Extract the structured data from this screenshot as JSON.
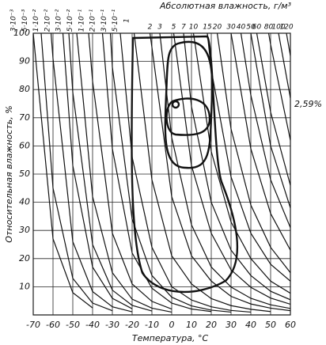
{
  "chart_data": {
    "type": "line",
    "title": "Абсолютная влажность, г/м³",
    "xlabel": "Температура, °C",
    "ylabel": "Относительная влажность, %",
    "annotation": "2,59%",
    "color": "#111",
    "grid": true,
    "xlim": [
      -70,
      60
    ],
    "xticks": [
      -70,
      -60,
      -50,
      -40,
      -30,
      -20,
      -10,
      0,
      10,
      20,
      30,
      40,
      50,
      60
    ],
    "ylim": [
      0,
      100
    ],
    "yticks": [
      10,
      20,
      30,
      40,
      50,
      60,
      70,
      80,
      90,
      100
    ],
    "series": [
      {
        "name": "3·10⁻³",
        "x": [
          -70,
          -60,
          -50,
          -40
        ],
        "values": [
          100,
          27,
          7.9,
          2.5
        ]
      },
      {
        "name": "5·10⁻³",
        "x": [
          -66,
          -60,
          -50,
          -40,
          -30
        ],
        "values": [
          100,
          45,
          13,
          4.2,
          1.5
        ]
      },
      {
        "name": "1·10⁻²",
        "x": [
          -61,
          -60,
          -50,
          -40,
          -30,
          -20
        ],
        "values": [
          100,
          91,
          26,
          8.3,
          2.9,
          1.1
        ]
      },
      {
        "name": "2·10⁻²",
        "x": [
          -55,
          -50,
          -40,
          -30,
          -20
        ],
        "values": [
          100,
          53,
          17,
          5.9,
          2.2
        ]
      },
      {
        "name": "3·10⁻²",
        "x": [
          -52,
          -50,
          -40,
          -30,
          -20,
          -10
        ],
        "values": [
          100,
          79,
          25,
          8.8,
          3.4,
          1.4
        ]
      },
      {
        "name": "5·10⁻²",
        "x": [
          -48,
          -40,
          -30,
          -20,
          -10,
          0
        ],
        "values": [
          100,
          42,
          15,
          5.6,
          2.4,
          1
        ]
      },
      {
        "name": "1·10⁻¹",
        "x": [
          -42,
          -40,
          -30,
          -20,
          -10,
          0
        ],
        "values": [
          100,
          83,
          29,
          11,
          4.8,
          2.1
        ]
      },
      {
        "name": "2·10⁻¹",
        "x": [
          -35,
          -30,
          -20,
          -10,
          0,
          10,
          20
        ],
        "values": [
          100,
          59,
          22,
          9.5,
          4.2,
          2.1,
          1.2
        ]
      },
      {
        "name": "3·10⁻¹",
        "x": [
          -31,
          -30,
          -20,
          -10,
          0,
          10,
          20,
          30
        ],
        "values": [
          100,
          88,
          34,
          14,
          6.3,
          3.2,
          1.7,
          1
        ]
      },
      {
        "name": "5·10⁻¹",
        "x": [
          -26,
          -20,
          -10,
          0,
          10,
          20,
          30,
          40
        ],
        "values": [
          100,
          56,
          24,
          10,
          5.3,
          2.9,
          1.6,
          1
        ]
      },
      {
        "name": "1",
        "x": [
          -19,
          -10,
          0,
          10,
          20,
          30,
          40,
          50
        ],
        "values": [
          100,
          48,
          21,
          11,
          5.8,
          3.3,
          2,
          1.2
        ]
      },
      {
        "name": "2",
        "x": [
          -11,
          -10,
          0,
          10,
          20,
          30,
          40,
          50,
          60
        ],
        "values": [
          100,
          95,
          42,
          21,
          12,
          6.6,
          3.9,
          2.4,
          1.5
        ]
      },
      {
        "name": "3",
        "x": [
          -6,
          0,
          10,
          20,
          30,
          40,
          50,
          60
        ],
        "values": [
          100,
          63,
          32,
          17,
          9.9,
          5.9,
          3.6,
          2.3
        ]
      },
      {
        "name": "5",
        "x": [
          1,
          10,
          20,
          30,
          40,
          50,
          60
        ],
        "values": [
          100,
          53,
          29,
          16,
          9.8,
          6,
          3.8
        ]
      },
      {
        "name": "7",
        "x": [
          6,
          10,
          20,
          30,
          40,
          50,
          60
        ],
        "values": [
          100,
          74,
          40,
          23,
          14,
          8.4,
          5.4
        ]
      },
      {
        "name": "10",
        "x": [
          11,
          20,
          30,
          40,
          50,
          60
        ],
        "values": [
          100,
          58,
          33,
          20,
          12,
          7.7
        ]
      },
      {
        "name": "15",
        "x": [
          18,
          20,
          30,
          40,
          50,
          60
        ],
        "values": [
          100,
          87,
          49,
          29,
          18,
          12
        ]
      },
      {
        "name": "20",
        "x": [
          23,
          30,
          40,
          50,
          60
        ],
        "values": [
          100,
          66,
          39,
          24,
          15
        ]
      },
      {
        "name": "30",
        "x": [
          30,
          40,
          50,
          60
        ],
        "values": [
          100,
          59,
          36,
          23
        ]
      },
      {
        "name": "40",
        "x": [
          35,
          40,
          50,
          60
        ],
        "values": [
          100,
          78,
          48,
          31
        ]
      },
      {
        "name": "50",
        "x": [
          40,
          50,
          60
        ],
        "values": [
          100,
          60,
          38
        ]
      },
      {
        "name": "60",
        "x": [
          43,
          50,
          60
        ],
        "values": [
          100,
          72,
          46
        ]
      },
      {
        "name": "80",
        "x": [
          49,
          50,
          60
        ],
        "values": [
          100,
          96,
          62
        ]
      },
      {
        "name": "100",
        "x": [
          54,
          60
        ],
        "values": [
          100,
          77
        ]
      },
      {
        "name": "120",
        "x": [
          58,
          60
        ],
        "values": [
          100,
          92
        ]
      }
    ]
  }
}
